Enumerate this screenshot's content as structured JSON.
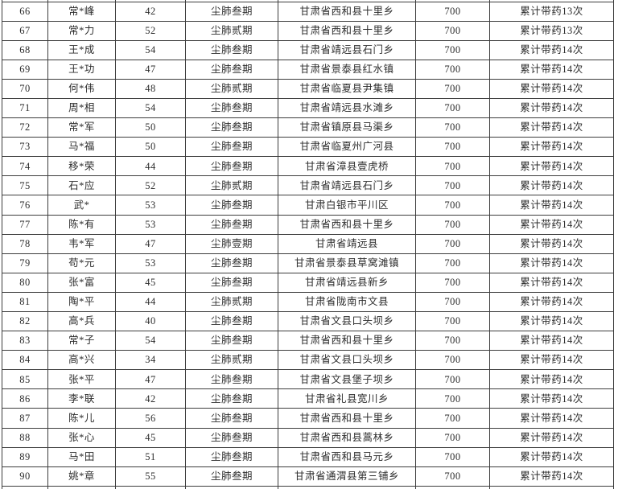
{
  "document": {
    "background_color": "#ffffff",
    "text_color": "#2d2d2d",
    "border_color": "#3d3d3d"
  },
  "table": {
    "column_fields": [
      "row-number",
      "masked-name",
      "age",
      "diagnosis-stage",
      "address",
      "amount",
      "medication-note"
    ],
    "rows": [
      [
        "66",
        "常*峰",
        "42",
        "尘肺叁期",
        "甘肃省西和县十里乡",
        "700",
        "累计带药13次"
      ],
      [
        "67",
        "常*力",
        "52",
        "尘肺贰期",
        "甘肃省西和县十里乡",
        "700",
        "累计带药13次"
      ],
      [
        "68",
        "王*成",
        "54",
        "尘肺叁期",
        "甘肃省靖远县石门乡",
        "700",
        "累计带药14次"
      ],
      [
        "69",
        "王*功",
        "47",
        "尘肺叁期",
        "甘肃省景泰县红水镇",
        "700",
        "累计带药14次"
      ],
      [
        "70",
        "何*伟",
        "48",
        "尘肺贰期",
        "甘肃省临夏县尹集镇",
        "700",
        "累计带药14次"
      ],
      [
        "71",
        "周*相",
        "54",
        "尘肺叁期",
        "甘肃省靖远县水滩乡",
        "700",
        "累计带药14次"
      ],
      [
        "72",
        "常*军",
        "50",
        "尘肺叁期",
        "甘肃省镇原县马渠乡",
        "700",
        "累计带药14次"
      ],
      [
        "73",
        "马*福",
        "50",
        "尘肺叁期",
        "甘肃省临夏州广河县",
        "700",
        "累计带药14次"
      ],
      [
        "74",
        "移*荣",
        "44",
        "尘肺叁期",
        "甘肃省漳县壹虎桥",
        "700",
        "累计带药14次"
      ],
      [
        "75",
        "石*应",
        "52",
        "尘肺贰期",
        "甘肃省靖远县石门乡",
        "700",
        "累计带药14次"
      ],
      [
        "76",
        "武*",
        "53",
        "尘肺叁期",
        "甘肃白银市平川区",
        "700",
        "累计带药14次"
      ],
      [
        "77",
        "陈*有",
        "53",
        "尘肺叁期",
        "甘肃省西和县十里乡",
        "700",
        "累计带药14次"
      ],
      [
        "78",
        "韦*军",
        "47",
        "尘肺壹期",
        "甘肃省靖远县",
        "700",
        "累计带药14次"
      ],
      [
        "79",
        "苟*元",
        "53",
        "尘肺叁期",
        "甘肃省景泰县草窝滩镇",
        "700",
        "累计带药14次"
      ],
      [
        "80",
        "张*富",
        "45",
        "尘肺叁期",
        "甘肃省靖远县新乡",
        "700",
        "累计带药14次"
      ],
      [
        "81",
        "陶*平",
        "44",
        "尘肺贰期",
        "甘肃省陇南市文县",
        "700",
        "累计带药14次"
      ],
      [
        "82",
        "高*兵",
        "40",
        "尘肺叁期",
        "甘肃省文县口头坝乡",
        "700",
        "累计带药14次"
      ],
      [
        "83",
        "常*子",
        "54",
        "尘肺叁期",
        "甘肃省西和县十里乡",
        "700",
        "累计带药14次"
      ],
      [
        "84",
        "高*兴",
        "34",
        "尘肺贰期",
        "甘肃省文县口头坝乡",
        "700",
        "累计带药14次"
      ],
      [
        "85",
        "张*平",
        "47",
        "尘肺叁期",
        "甘肃省文县堡子坝乡",
        "700",
        "累计带药14次"
      ],
      [
        "86",
        "李*联",
        "42",
        "尘肺叁期",
        "甘肃省礼县宽川乡",
        "700",
        "累计带药14次"
      ],
      [
        "87",
        "陈*儿",
        "56",
        "尘肺叁期",
        "甘肃省西和县十里乡",
        "700",
        "累计带药14次"
      ],
      [
        "88",
        "张*心",
        "45",
        "尘肺叁期",
        "甘肃省西和县蒿林乡",
        "700",
        "累计带药14次"
      ],
      [
        "89",
        "马*田",
        "51",
        "尘肺叁期",
        "甘肃省西和县马元乡",
        "700",
        "累计带药14次"
      ],
      [
        "90",
        "姚*章",
        "55",
        "尘肺叁期",
        "甘肃省通渭县第三铺乡",
        "700",
        "累计带药14次"
      ]
    ]
  }
}
